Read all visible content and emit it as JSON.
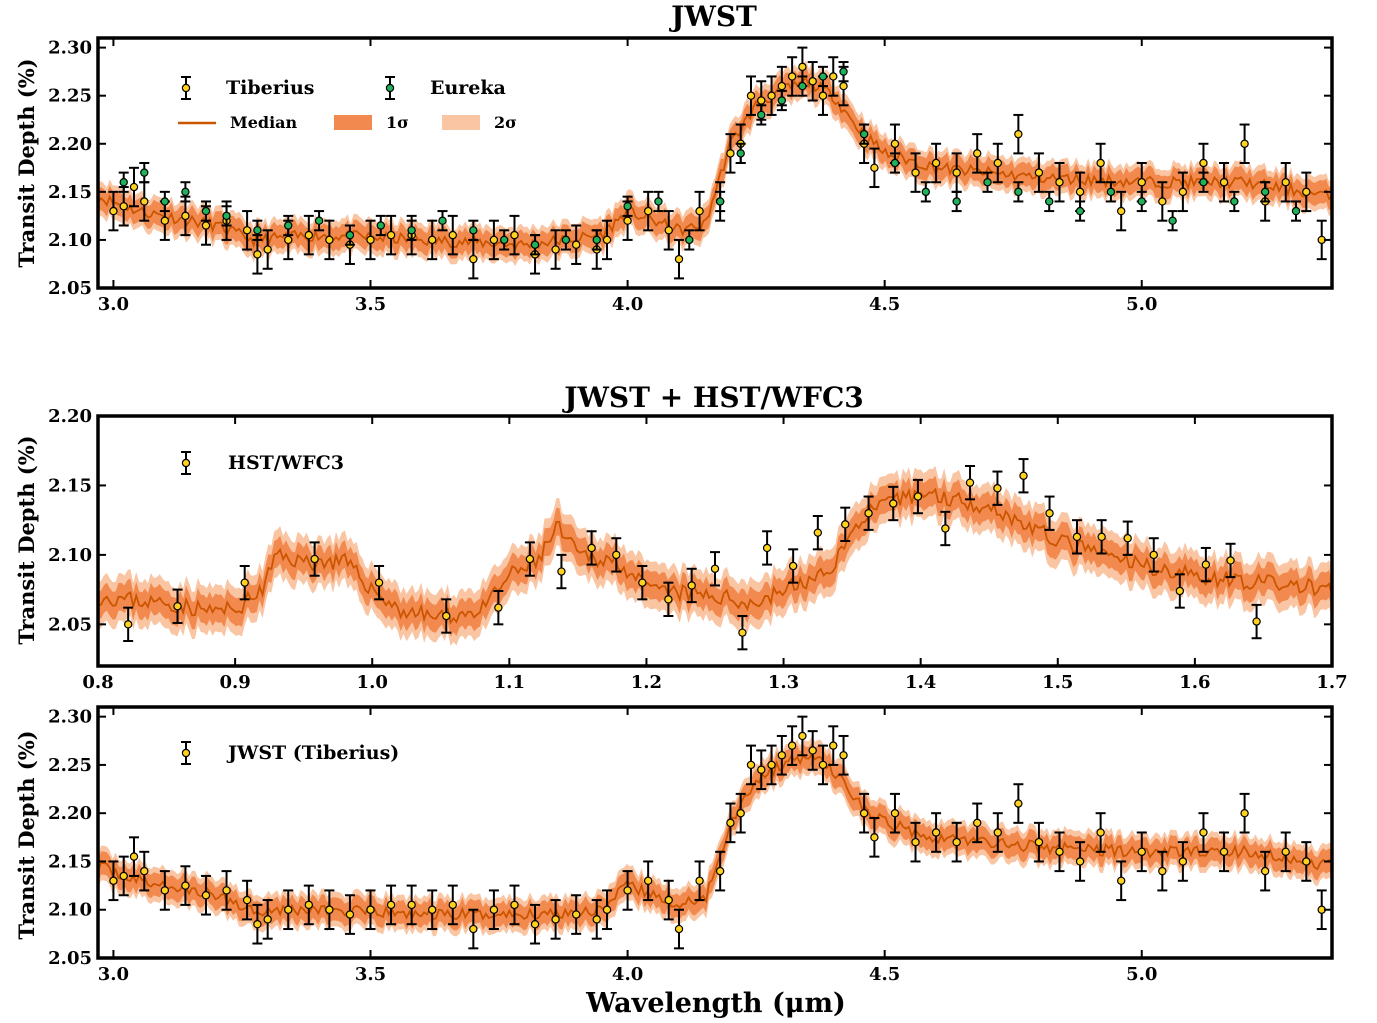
{
  "colors": {
    "model_line": "#cc5500",
    "band_1sigma": "#f28a4f",
    "band_2sigma": "#f9c5a3",
    "tiberius_marker": "#ffd21f",
    "eureka_marker": "#1fb25a",
    "errorbar": "#000000"
  },
  "xlabel": "Wavelength (μm)",
  "chart_data": [
    {
      "type": "scatter",
      "title": "JWST",
      "xlabel": "",
      "ylabel": "Transit Depth (%)",
      "xlim": [
        2.97,
        5.37
      ],
      "ylim": [
        2.05,
        2.31
      ],
      "xticks": [
        3.0,
        3.5,
        4.0,
        4.5,
        5.0
      ],
      "xtick_labels": [
        "3.0",
        "3.5",
        "4.0",
        "4.5",
        "5.0"
      ],
      "yticks": [
        2.05,
        2.1,
        2.15,
        2.2,
        2.25,
        2.3
      ],
      "ytick_labels": [
        "2.05",
        "2.10",
        "2.15",
        "2.20",
        "2.25",
        "2.30"
      ],
      "legend": {
        "placement": "top-left",
        "entries": [
          "Tiberius",
          "Eureka",
          "Median",
          "1σ",
          "2σ"
        ]
      },
      "model_median": {
        "x": [
          2.97,
          3.05,
          3.2,
          3.27,
          3.4,
          3.6,
          3.8,
          3.95,
          4.0,
          4.1,
          4.15,
          4.2,
          4.25,
          4.3,
          4.35,
          4.4,
          4.45,
          4.5,
          4.6,
          4.8,
          5.0,
          5.2,
          5.37
        ],
        "y": [
          2.145,
          2.13,
          2.115,
          2.1,
          2.105,
          2.1,
          2.095,
          2.105,
          2.13,
          2.11,
          2.115,
          2.2,
          2.24,
          2.255,
          2.265,
          2.25,
          2.215,
          2.19,
          2.175,
          2.165,
          2.16,
          2.16,
          2.145
        ]
      },
      "band_1sigma_halfwidth": 0.012,
      "band_2sigma_halfwidth": 0.018,
      "series": [
        {
          "name": "Tiberius",
          "x": [
            3.0,
            3.02,
            3.04,
            3.06,
            3.1,
            3.14,
            3.18,
            3.22,
            3.26,
            3.28,
            3.3,
            3.34,
            3.38,
            3.42,
            3.46,
            3.5,
            3.54,
            3.58,
            3.62,
            3.66,
            3.7,
            3.74,
            3.78,
            3.82,
            3.86,
            3.9,
            3.94,
            3.96,
            4.0,
            4.04,
            4.08,
            4.1,
            4.14,
            4.18,
            4.2,
            4.22,
            4.24,
            4.26,
            4.28,
            4.3,
            4.32,
            4.34,
            4.36,
            4.38,
            4.4,
            4.42,
            4.46,
            4.48,
            4.52,
            4.56,
            4.6,
            4.64,
            4.68,
            4.72,
            4.76,
            4.8,
            4.84,
            4.88,
            4.92,
            4.96,
            5.0,
            5.04,
            5.08,
            5.12,
            5.16,
            5.2,
            5.24,
            5.28,
            5.32,
            5.35
          ],
          "y": [
            2.13,
            2.135,
            2.155,
            2.14,
            2.12,
            2.125,
            2.115,
            2.12,
            2.11,
            2.085,
            2.09,
            2.1,
            2.105,
            2.1,
            2.095,
            2.1,
            2.105,
            2.105,
            2.1,
            2.105,
            2.08,
            2.1,
            2.105,
            2.085,
            2.09,
            2.095,
            2.09,
            2.1,
            2.12,
            2.13,
            2.11,
            2.08,
            2.13,
            2.14,
            2.19,
            2.2,
            2.25,
            2.245,
            2.25,
            2.26,
            2.27,
            2.28,
            2.265,
            2.25,
            2.27,
            2.26,
            2.2,
            2.175,
            2.2,
            2.17,
            2.18,
            2.17,
            2.19,
            2.18,
            2.21,
            2.17,
            2.16,
            2.15,
            2.18,
            2.13,
            2.16,
            2.14,
            2.15,
            2.18,
            2.16,
            2.2,
            2.14,
            2.16,
            2.15,
            2.1
          ],
          "yerr": 0.02
        },
        {
          "name": "Eureka",
          "x": [
            3.02,
            3.06,
            3.1,
            3.14,
            3.18,
            3.22,
            3.28,
            3.34,
            3.4,
            3.46,
            3.52,
            3.58,
            3.64,
            3.7,
            3.76,
            3.82,
            3.88,
            3.94,
            4.0,
            4.06,
            4.12,
            4.18,
            4.22,
            4.26,
            4.3,
            4.34,
            4.38,
            4.42,
            4.46,
            4.52,
            4.58,
            4.64,
            4.7,
            4.76,
            4.82,
            4.88,
            4.94,
            5.0,
            5.06,
            5.12,
            5.18,
            5.24,
            5.3
          ],
          "y": [
            2.16,
            2.17,
            2.14,
            2.15,
            2.13,
            2.125,
            2.11,
            2.115,
            2.12,
            2.105,
            2.115,
            2.11,
            2.12,
            2.11,
            2.1,
            2.095,
            2.1,
            2.1,
            2.135,
            2.14,
            2.1,
            2.14,
            2.19,
            2.23,
            2.245,
            2.26,
            2.27,
            2.275,
            2.21,
            2.18,
            2.15,
            2.14,
            2.16,
            2.15,
            2.14,
            2.13,
            2.15,
            2.14,
            2.12,
            2.16,
            2.14,
            2.15,
            2.13
          ],
          "yerr": 0.01
        }
      ]
    },
    {
      "type": "scatter",
      "title": "JWST + HST/WFC3",
      "xlabel": "",
      "ylabel": "Transit Depth (%)",
      "xlim": [
        0.8,
        1.7
      ],
      "ylim": [
        2.02,
        2.2
      ],
      "xticks": [
        0.8,
        0.9,
        1.0,
        1.1,
        1.2,
        1.3,
        1.4,
        1.5,
        1.6,
        1.7
      ],
      "xtick_labels": [
        "0.8",
        "0.9",
        "1.0",
        "1.1",
        "1.2",
        "1.3",
        "1.4",
        "1.5",
        "1.6",
        "1.7"
      ],
      "yticks": [
        2.05,
        2.1,
        2.15,
        2.2
      ],
      "ytick_labels": [
        "2.05",
        "2.10",
        "2.15",
        "2.20"
      ],
      "legend": {
        "placement": "top-left",
        "entries": [
          "HST/WFC3"
        ]
      },
      "model_median": {
        "x": [
          0.8,
          0.85,
          0.88,
          0.9,
          0.92,
          0.93,
          0.95,
          0.98,
          1.0,
          1.02,
          1.05,
          1.08,
          1.1,
          1.12,
          1.135,
          1.15,
          1.18,
          1.2,
          1.25,
          1.28,
          1.3,
          1.33,
          1.36,
          1.4,
          1.45,
          1.5,
          1.55,
          1.6,
          1.65,
          1.7
        ],
        "y": [
          2.07,
          2.065,
          2.06,
          2.06,
          2.075,
          2.1,
          2.095,
          2.095,
          2.075,
          2.06,
          2.055,
          2.06,
          2.085,
          2.095,
          2.12,
          2.1,
          2.095,
          2.075,
          2.07,
          2.065,
          2.075,
          2.085,
          2.13,
          2.145,
          2.135,
          2.11,
          2.095,
          2.085,
          2.08,
          2.075
        ]
      },
      "band_1sigma_halfwidth": 0.01,
      "band_2sigma_halfwidth": 0.017,
      "series": [
        {
          "name": "HST/WFC3",
          "x": [
            0.822,
            0.858,
            0.907,
            0.958,
            1.005,
            1.054,
            1.092,
            1.115,
            1.138,
            1.16,
            1.178,
            1.197,
            1.216,
            1.233,
            1.25,
            1.27,
            1.288,
            1.307,
            1.325,
            1.345,
            1.362,
            1.38,
            1.398,
            1.418,
            1.436,
            1.456,
            1.475,
            1.494,
            1.514,
            1.532,
            1.551,
            1.57,
            1.589,
            1.608,
            1.626,
            1.645
          ],
          "y": [
            2.05,
            2.063,
            2.08,
            2.097,
            2.08,
            2.056,
            2.062,
            2.097,
            2.088,
            2.105,
            2.1,
            2.08,
            2.068,
            2.078,
            2.09,
            2.044,
            2.105,
            2.092,
            2.116,
            2.122,
            2.13,
            2.137,
            2.142,
            2.119,
            2.152,
            2.148,
            2.157,
            2.13,
            2.113,
            2.113,
            2.112,
            2.1,
            2.074,
            2.093,
            2.096,
            2.052
          ],
          "yerr": 0.012
        }
      ]
    },
    {
      "type": "scatter",
      "title": "",
      "xlabel": "Wavelength (μm)",
      "ylabel": "Transit Depth (%)",
      "xlim": [
        2.97,
        5.37
      ],
      "ylim": [
        2.05,
        2.31
      ],
      "xticks": [
        3.0,
        3.5,
        4.0,
        4.5,
        5.0
      ],
      "xtick_labels": [
        "3.0",
        "3.5",
        "4.0",
        "4.5",
        "5.0"
      ],
      "yticks": [
        2.05,
        2.1,
        2.15,
        2.2,
        2.25,
        2.3
      ],
      "ytick_labels": [
        "2.05",
        "2.10",
        "2.15",
        "2.20",
        "2.25",
        "2.30"
      ],
      "legend": {
        "placement": "top-left",
        "entries": [
          "JWST (Tiberius)"
        ]
      },
      "model_median": {
        "x": [
          2.97,
          3.05,
          3.2,
          3.27,
          3.4,
          3.6,
          3.8,
          3.95,
          4.0,
          4.1,
          4.15,
          4.2,
          4.25,
          4.3,
          4.35,
          4.4,
          4.45,
          4.5,
          4.6,
          4.8,
          5.0,
          5.2,
          5.37
        ],
        "y": [
          2.145,
          2.13,
          2.115,
          2.1,
          2.1,
          2.095,
          2.095,
          2.1,
          2.125,
          2.105,
          2.11,
          2.19,
          2.235,
          2.25,
          2.26,
          2.245,
          2.21,
          2.19,
          2.175,
          2.165,
          2.16,
          2.16,
          2.145
        ]
      },
      "band_1sigma_halfwidth": 0.012,
      "band_2sigma_halfwidth": 0.018,
      "series": [
        {
          "name": "JWST (Tiberius)",
          "x": [
            3.0,
            3.02,
            3.04,
            3.06,
            3.1,
            3.14,
            3.18,
            3.22,
            3.26,
            3.28,
            3.3,
            3.34,
            3.38,
            3.42,
            3.46,
            3.5,
            3.54,
            3.58,
            3.62,
            3.66,
            3.7,
            3.74,
            3.78,
            3.82,
            3.86,
            3.9,
            3.94,
            3.96,
            4.0,
            4.04,
            4.08,
            4.1,
            4.14,
            4.18,
            4.2,
            4.22,
            4.24,
            4.26,
            4.28,
            4.3,
            4.32,
            4.34,
            4.36,
            4.38,
            4.4,
            4.42,
            4.46,
            4.48,
            4.52,
            4.56,
            4.6,
            4.64,
            4.68,
            4.72,
            4.76,
            4.8,
            4.84,
            4.88,
            4.92,
            4.96,
            5.0,
            5.04,
            5.08,
            5.12,
            5.16,
            5.2,
            5.24,
            5.28,
            5.32,
            5.35
          ],
          "y": [
            2.13,
            2.135,
            2.155,
            2.14,
            2.12,
            2.125,
            2.115,
            2.12,
            2.11,
            2.085,
            2.09,
            2.1,
            2.105,
            2.1,
            2.095,
            2.1,
            2.105,
            2.105,
            2.1,
            2.105,
            2.08,
            2.1,
            2.105,
            2.085,
            2.09,
            2.095,
            2.09,
            2.1,
            2.12,
            2.13,
            2.11,
            2.08,
            2.13,
            2.14,
            2.19,
            2.2,
            2.25,
            2.245,
            2.25,
            2.26,
            2.27,
            2.28,
            2.265,
            2.25,
            2.27,
            2.26,
            2.2,
            2.175,
            2.2,
            2.17,
            2.18,
            2.17,
            2.19,
            2.18,
            2.21,
            2.17,
            2.16,
            2.15,
            2.18,
            2.13,
            2.16,
            2.14,
            2.15,
            2.18,
            2.16,
            2.2,
            2.14,
            2.16,
            2.15,
            2.1
          ],
          "yerr": 0.02
        }
      ]
    }
  ]
}
